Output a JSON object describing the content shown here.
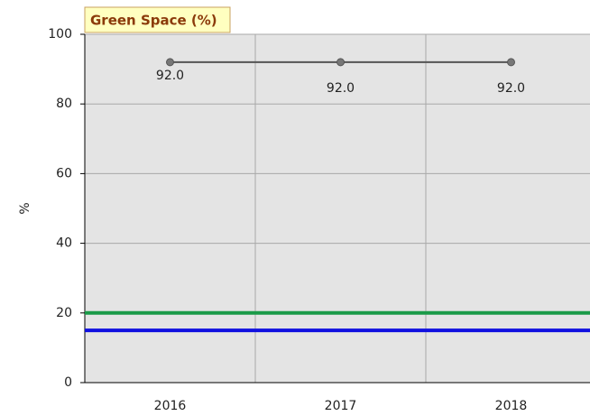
{
  "chart_data": {
    "type": "line",
    "title": "Green Space (%)",
    "ylabel": "%",
    "categories": [
      "2016",
      "2017",
      "2018"
    ],
    "series": [
      {
        "color": "#555555",
        "values": [
          92,
          92,
          92
        ],
        "value_labels": [
          "92.0",
          "92.0",
          "92.0"
        ]
      }
    ],
    "reference_lines": [
      {
        "value": 20,
        "color": "#1a9a48"
      },
      {
        "value": 15,
        "color": "#1010e0"
      }
    ],
    "ylim": [
      0,
      100
    ],
    "yticks": [
      0,
      20,
      40,
      60,
      80,
      100
    ],
    "grid": true
  }
}
